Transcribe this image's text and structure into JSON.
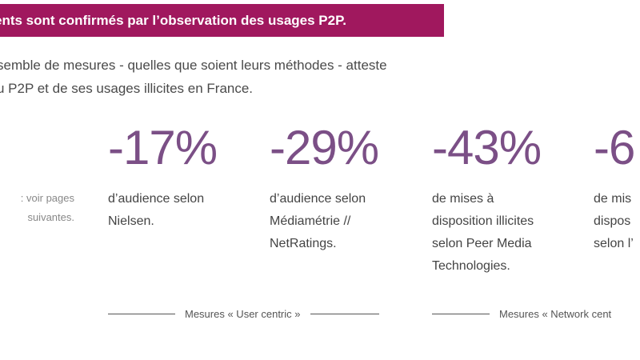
{
  "banner": {
    "title": "ents sont confirmés par l’observation des usages P2P."
  },
  "intro": {
    "lines": [
      "semble de mesures - quelles que soient leurs méthodes - atteste",
      "u P2P et de ses usages illicites en France."
    ]
  },
  "note": {
    "lines": [
      ": voir pages",
      "suivantes."
    ]
  },
  "stats": [
    {
      "value": "-17%",
      "lines": [
        "d’audience selon",
        "Nielsen."
      ]
    },
    {
      "value": "-29%",
      "lines": [
        "d’audience selon",
        "Médiamétrie //",
        "NetRatings."
      ]
    },
    {
      "value": "-43%",
      "lines": [
        "de mises à",
        "disposition illicites",
        "selon Peer Media",
        "Technologies."
      ]
    },
    {
      "value": "-6",
      "lines": [
        "de mis",
        "dispos",
        "selon l’"
      ]
    }
  ],
  "groups": {
    "user_centric": "Mesures « User centric »",
    "network_centric": "Mesures « Network cent"
  },
  "colors": {
    "banner": "#a0185e",
    "accent": "#7b4f86"
  }
}
